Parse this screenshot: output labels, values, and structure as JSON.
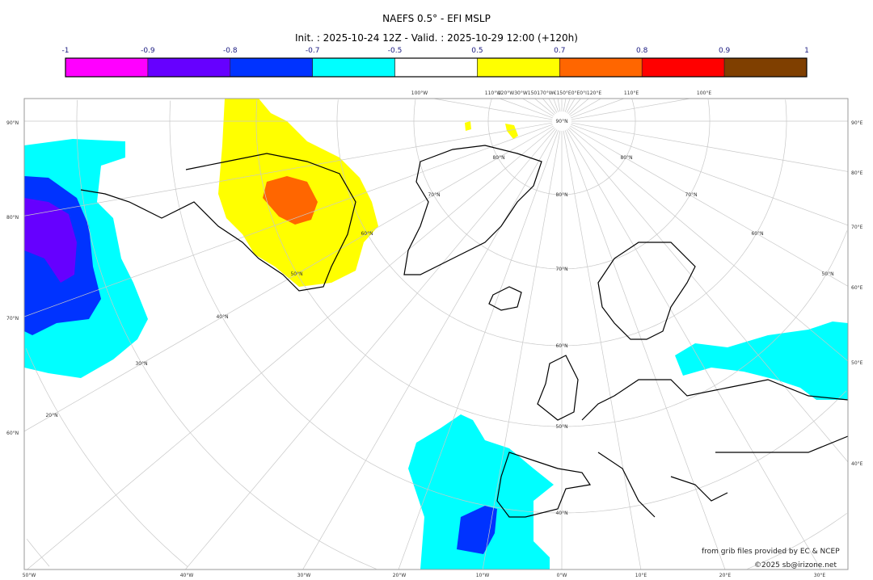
{
  "header": {
    "title": "NAEFS 0.5° - EFI MSLP",
    "subtitle": "Init. : 2025-10-24 12Z - Valid. : 2025-10-29 12:00 (+120h)"
  },
  "colorbar": {
    "ticks": [
      "-1",
      "-0.9",
      "-0.8",
      "-0.7",
      "-0.5",
      "0.5",
      "0.7",
      "0.8",
      "0.9",
      "1"
    ],
    "colors": [
      "#ff00ff",
      "#6600ff",
      "#0033ff",
      "#00ffff",
      "#ffffff",
      "#ffff00",
      "#ff6600",
      "#ff0000",
      "#7f3f00"
    ]
  },
  "map": {
    "left_labels": [
      "90°N",
      "80°N",
      "70°N",
      "60°N"
    ],
    "right_labels": [
      "90°E",
      "80°E",
      "70°E",
      "60°E",
      "50°E",
      "40°E"
    ],
    "bottom_labels": [
      "50°W",
      "40°W",
      "30°W",
      "20°W",
      "10°W",
      "0°W",
      "10°E",
      "20°E",
      "30°E"
    ],
    "top_labels": [
      "100°W",
      "110°W",
      "120°W30°W150170°W€150°E0°E0°I120°E",
      "110°E",
      "100°E"
    ],
    "inner_labels": [
      "90°N",
      "80°N",
      "80°N",
      "70°N",
      "80°N",
      "70°N",
      "60°N",
      "60°N",
      "70°N",
      "50°N",
      "50°N",
      "40°N",
      "60°N",
      "30°N",
      "50°N",
      "20°N",
      "40°N"
    ]
  },
  "credits": {
    "source": "from grib files provided by EC & NCEP",
    "copyright": "©2025 sb@irizone.net"
  }
}
